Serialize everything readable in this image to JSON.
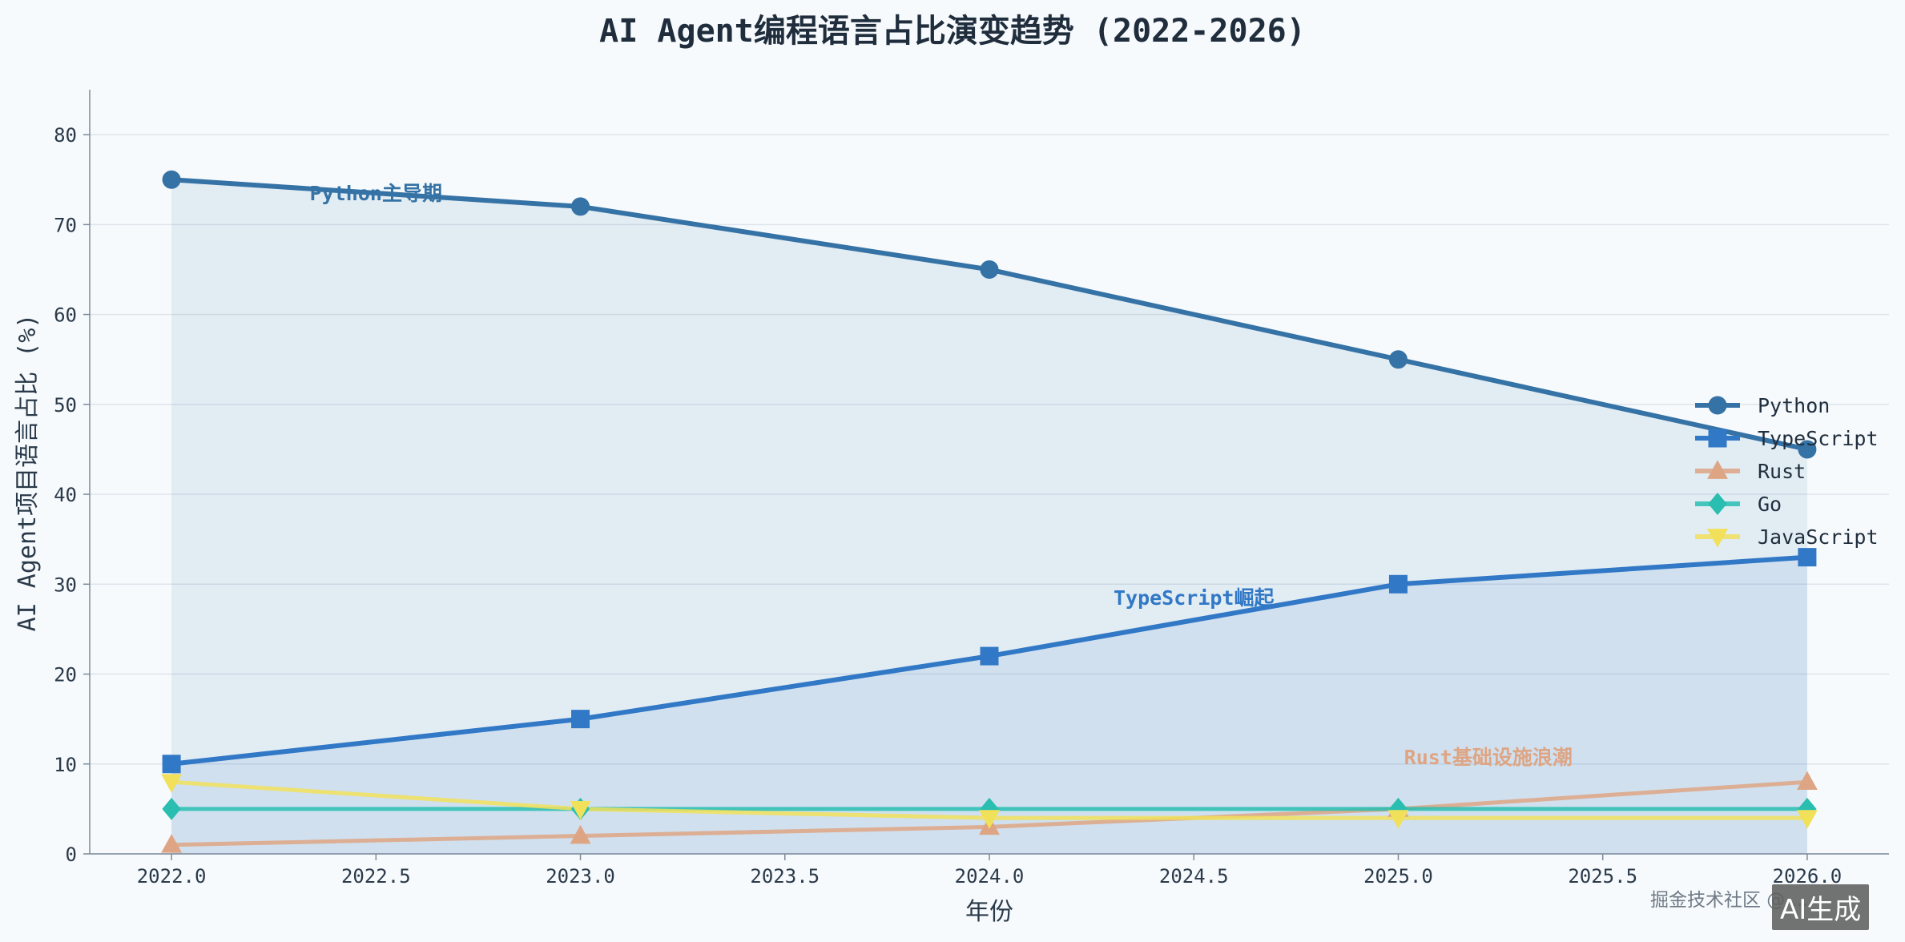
{
  "chart_data": {
    "type": "line",
    "title": "AI Agent编程语言占比演变趋势 (2022-2026)",
    "xlabel": "年份",
    "ylabel": "AI Agent项目语言占比 (%)",
    "x": [
      2022,
      2023,
      2024,
      2025,
      2026
    ],
    "xlim": [
      2021.8,
      2026.2
    ],
    "ylim": [
      0,
      85
    ],
    "xticks": [
      2022.0,
      2022.5,
      2023.0,
      2023.5,
      2024.0,
      2024.5,
      2025.0,
      2025.5,
      2026.0
    ],
    "xtick_labels": [
      "2022.0",
      "2022.5",
      "2023.0",
      "2023.5",
      "2024.0",
      "2024.5",
      "2025.0",
      "2025.5",
      "2026.0"
    ],
    "yticks": [
      0,
      10,
      20,
      30,
      40,
      50,
      60,
      70,
      80
    ],
    "ytick_labels": [
      "0",
      "10",
      "20",
      "30",
      "40",
      "50",
      "60",
      "70",
      "80"
    ],
    "grid": true,
    "legend_position": "right",
    "series": [
      {
        "name": "Python",
        "values": [
          75,
          72,
          65,
          55,
          45
        ],
        "color": "#3572a5",
        "marker": "circle",
        "filled": true
      },
      {
        "name": "TypeScript",
        "values": [
          10,
          15,
          22,
          30,
          33
        ],
        "color": "#3178c6",
        "marker": "square",
        "filled": true
      },
      {
        "name": "Rust",
        "values": [
          1,
          2,
          3,
          5,
          8
        ],
        "color": "#dea584",
        "marker": "triangle-up",
        "filled": false
      },
      {
        "name": "Go",
        "values": [
          5,
          5,
          5,
          5,
          5
        ],
        "color": "#29beb0",
        "marker": "diamond",
        "filled": false
      },
      {
        "name": "JavaScript",
        "values": [
          8,
          5,
          4,
          4,
          4
        ],
        "color": "#f1e05a",
        "marker": "triangle-down",
        "filled": false
      }
    ],
    "annotations": [
      {
        "text": "Python主导期",
        "x": 2022.5,
        "y": 73.5,
        "color": "#3572a5"
      },
      {
        "text": "TypeScript崛起",
        "x": 2024.5,
        "y": 28.5,
        "color": "#3178c6"
      },
      {
        "text": "Rust基础设施浪潮",
        "x": 2025.22,
        "y": 10.8,
        "color": "#dea584"
      }
    ]
  },
  "watermark": "掘金技术社区 @ ...",
  "ai_badge": "AI生成"
}
